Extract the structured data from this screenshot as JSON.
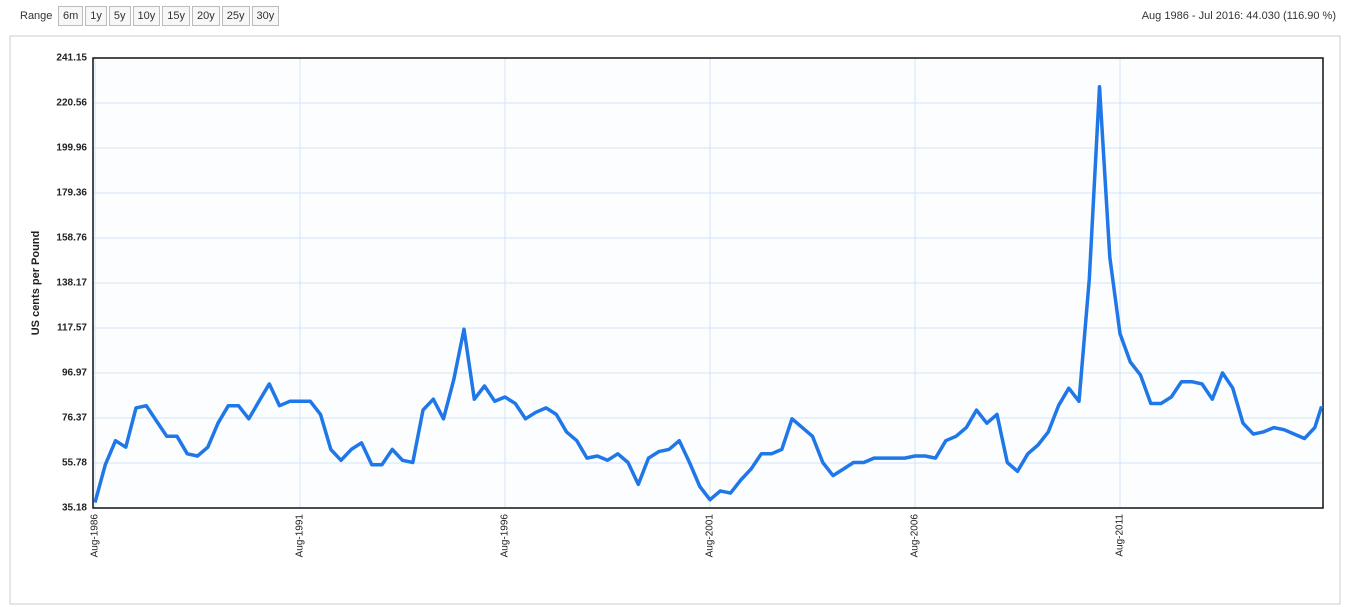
{
  "toolbar": {
    "range_label": "Range",
    "buttons": [
      "6m",
      "1y",
      "5y",
      "10y",
      "15y",
      "20y",
      "25y",
      "30y"
    ],
    "summary": "Aug 1986 - Jul 2016: 44.030 (116.90 %)"
  },
  "chart_data": {
    "type": "line",
    "y_label": "US cents per Pound",
    "color": "#1f77e8",
    "grid": true,
    "ylim": [
      35.18,
      241.15
    ],
    "yticks": [
      35.18,
      55.78,
      76.37,
      96.97,
      117.57,
      138.17,
      158.76,
      179.36,
      199.96,
      220.56,
      241.15
    ],
    "xticks": [
      "Aug-1986",
      "Aug-1991",
      "Aug-1996",
      "Aug-2001",
      "Aug-2006",
      "Aug-2011"
    ],
    "x": [
      "Aug-1986",
      "Nov-1986",
      "Feb-1987",
      "May-1987",
      "Aug-1987",
      "Nov-1987",
      "Feb-1988",
      "May-1988",
      "Aug-1988",
      "Nov-1988",
      "Feb-1989",
      "May-1989",
      "Aug-1989",
      "Nov-1989",
      "Feb-1990",
      "May-1990",
      "Aug-1990",
      "Nov-1990",
      "Feb-1991",
      "May-1991",
      "Aug-1991",
      "Nov-1991",
      "Feb-1992",
      "May-1992",
      "Aug-1992",
      "Nov-1992",
      "Feb-1993",
      "May-1993",
      "Aug-1993",
      "Nov-1993",
      "Feb-1994",
      "May-1994",
      "Aug-1994",
      "Nov-1994",
      "Feb-1995",
      "May-1995",
      "Aug-1995",
      "Nov-1995",
      "Feb-1996",
      "May-1996",
      "Aug-1996",
      "Nov-1996",
      "Feb-1997",
      "May-1997",
      "Aug-1997",
      "Nov-1997",
      "Feb-1998",
      "May-1998",
      "Aug-1998",
      "Nov-1998",
      "Feb-1999",
      "May-1999",
      "Aug-1999",
      "Nov-1999",
      "Feb-2000",
      "May-2000",
      "Aug-2000",
      "Nov-2000",
      "Feb-2001",
      "May-2001",
      "Aug-2001",
      "Nov-2001",
      "Feb-2002",
      "May-2002",
      "Aug-2002",
      "Nov-2002",
      "Feb-2003",
      "May-2003",
      "Aug-2003",
      "Nov-2003",
      "Feb-2004",
      "May-2004",
      "Aug-2004",
      "Nov-2004",
      "Feb-2005",
      "May-2005",
      "Aug-2005",
      "Nov-2005",
      "Feb-2006",
      "May-2006",
      "Aug-2006",
      "Nov-2006",
      "Feb-2007",
      "May-2007",
      "Aug-2007",
      "Nov-2007",
      "Feb-2008",
      "May-2008",
      "Aug-2008",
      "Nov-2008",
      "Feb-2009",
      "May-2009",
      "Aug-2009",
      "Nov-2009",
      "Feb-2010",
      "May-2010",
      "Aug-2010",
      "Nov-2010",
      "Feb-2011",
      "May-2011",
      "Aug-2011",
      "Nov-2011",
      "Feb-2012",
      "May-2012",
      "Aug-2012",
      "Nov-2012",
      "Feb-2013",
      "May-2013",
      "Aug-2013",
      "Nov-2013",
      "Feb-2014",
      "May-2014",
      "Aug-2014",
      "Nov-2014",
      "Feb-2015",
      "May-2015",
      "Aug-2015",
      "Nov-2015",
      "Feb-2016",
      "May-2016",
      "Jul-2016"
    ],
    "values": [
      37.7,
      55,
      66,
      63,
      81,
      82,
      75,
      68,
      68,
      60,
      59,
      63,
      74,
      82,
      82,
      76,
      84,
      92,
      82,
      84,
      84,
      84,
      78,
      62,
      57,
      62,
      65,
      55,
      55,
      62,
      57,
      56,
      80,
      85,
      76,
      94,
      117,
      85,
      91,
      84,
      86,
      83,
      76,
      79,
      81,
      78,
      70,
      66,
      58,
      59,
      57,
      60,
      56,
      46,
      58,
      61,
      62,
      66,
      56,
      45,
      39,
      43,
      42,
      48,
      53,
      60,
      60,
      62,
      76,
      72,
      68,
      56,
      50,
      53,
      56,
      56,
      58,
      58,
      58,
      58,
      59,
      59,
      58,
      66,
      68,
      72,
      80,
      74,
      78,
      56,
      52,
      60,
      64,
      70,
      82,
      90,
      84,
      140,
      228,
      150,
      115,
      102,
      96,
      83,
      83,
      86,
      93,
      93,
      92,
      85,
      97,
      90,
      74,
      69,
      70,
      72,
      71,
      69,
      67,
      72,
      81.7
    ]
  }
}
